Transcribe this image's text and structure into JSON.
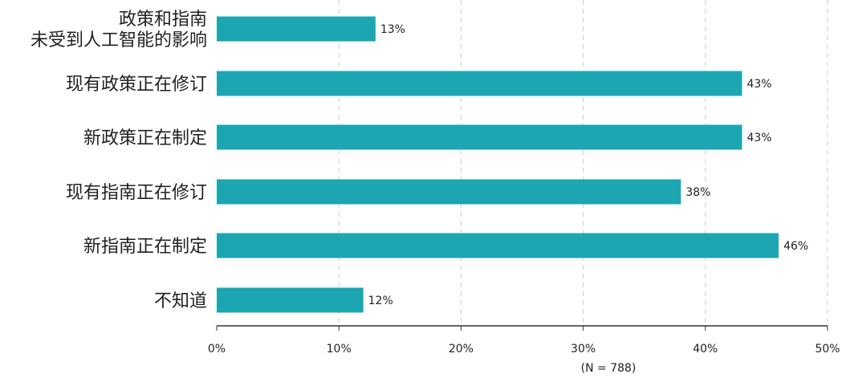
{
  "colors": {
    "bar": "#1ba6b2",
    "grid": "#cccccc",
    "axis": "#333333",
    "text": "#222222"
  },
  "chart_data": {
    "type": "bar",
    "orientation": "horizontal",
    "categories": [
      [
        "政策和指南",
        "未受到人工智能的影响"
      ],
      [
        "现有政策正在修订"
      ],
      [
        "新政策正在制定"
      ],
      [
        "现有指南正在修订"
      ],
      [
        "新指南正在制定"
      ],
      [
        "不知道"
      ]
    ],
    "values": [
      13,
      43,
      43,
      38,
      46,
      12
    ],
    "value_labels": [
      "13%",
      "43%",
      "43%",
      "38%",
      "46%",
      "12%"
    ],
    "xlim": [
      0,
      50
    ],
    "xticks": [
      0,
      10,
      20,
      30,
      40,
      50
    ],
    "xtick_labels": [
      "0%",
      "10%",
      "20%",
      "30%",
      "40%",
      "50%"
    ],
    "grid": "vertical dashed",
    "note": "(N = 788)",
    "title": "",
    "xlabel": "",
    "ylabel": ""
  }
}
